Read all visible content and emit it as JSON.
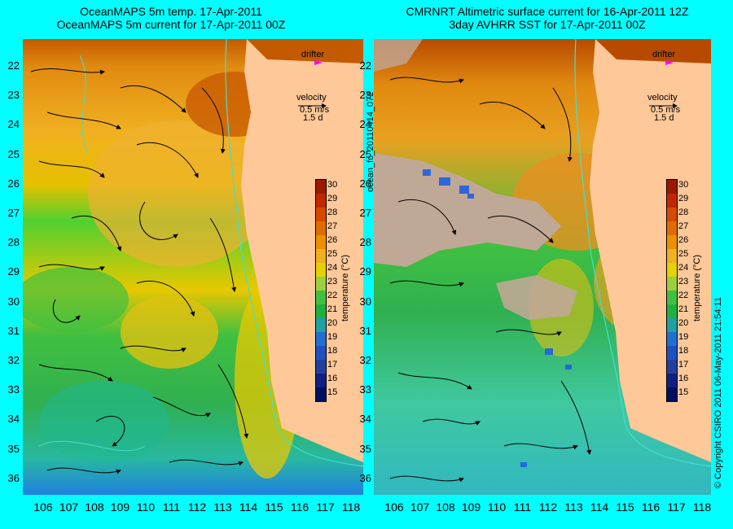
{
  "left_panel": {
    "title_line1": "OceanMAPS 5m temp. 17-Apr-2011",
    "title_line2": "OceanMAPS 5m current for 17-Apr-2011 00Z",
    "drifter_label": "drifter",
    "velocity_label": "velocity",
    "velocity_scale": "0.5 m/s",
    "velocity_duration": "1.5 d",
    "colorbar_title": "temperature (°C)"
  },
  "right_panel": {
    "title_line1": "CMRNRT Altimetric surface current for 16-Apr-2011 12Z",
    "title_line2": "3day AVHRR SST for 17-Apr-2011 00Z",
    "drifter_label": "drifter",
    "velocity_label": "velocity",
    "velocity_scale": "0.5 m/s",
    "velocity_duration": "1.5 d",
    "colorbar_title": "temperature (°C)"
  },
  "side_label": "ocean_fc_20110414_072",
  "copyright": "© Copyright CSIRO 2011   06-May-2011 21:54:11",
  "latitudes": [
    "22",
    "23",
    "24",
    "25",
    "26",
    "27",
    "28",
    "29",
    "30",
    "31",
    "32",
    "33",
    "34",
    "35",
    "36"
  ],
  "longitudes": [
    "106",
    "107",
    "108",
    "109",
    "110",
    "111",
    "112",
    "113",
    "114",
    "115",
    "116",
    "117",
    "118"
  ],
  "colorbar_ticks": [
    "30",
    "29",
    "28",
    "27",
    "26",
    "25",
    "24",
    "23",
    "22",
    "21",
    "20",
    "19",
    "18",
    "17",
    "16",
    "15"
  ],
  "colors": {
    "frame": "#00ffff",
    "land": "#fec899",
    "cloud": "#c0a896",
    "drifter": "#ff00ff",
    "isobath": "#40e0d0"
  }
}
